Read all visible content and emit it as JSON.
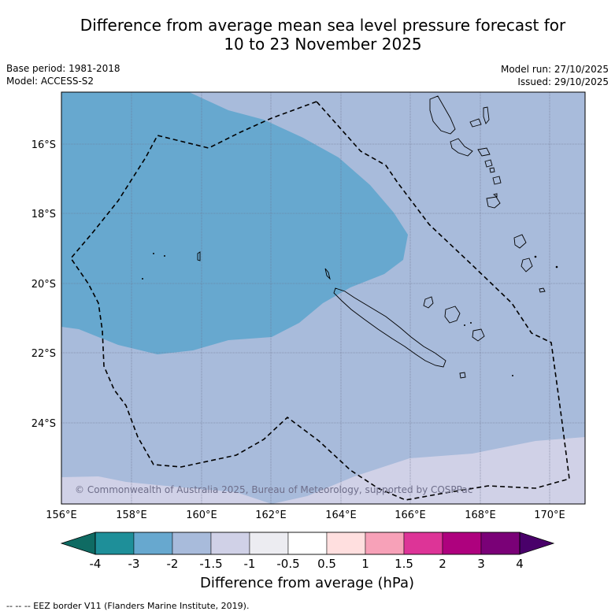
{
  "title": {
    "line1": "Difference from average mean sea level pressure forecast for",
    "line2": "10 to 23 November 2025"
  },
  "meta": {
    "base_period": "Base period: 1981-2018",
    "model": "Model: ACCESS-S2",
    "model_run": "Model run: 27/10/2025",
    "issued": "Issued: 29/10/2025"
  },
  "axes": {
    "lon_labels": [
      "156°E",
      "158°E",
      "160°E",
      "162°E",
      "164°E",
      "166°E",
      "168°E",
      "170°E"
    ],
    "lat_labels": [
      "16°S",
      "18°S",
      "20°S",
      "22°S",
      "24°S"
    ]
  },
  "copyright": "© Commonwealth of Australia 2025, Bureau of Meteorology, supported by COSPPac",
  "colorbar": {
    "tick_labels": [
      "-4",
      "-3",
      "-2",
      "-1.5",
      "-1",
      "-0.5",
      "0.5",
      "1",
      "1.5",
      "2",
      "3",
      "4"
    ],
    "colors": [
      "#1e8f99",
      "#67a8cf",
      "#a8bbdb",
      "#d0d1e7",
      "#ececf1",
      "#ffffff",
      "#ffdfdf",
      "#f7a1b8",
      "#dd3497",
      "#ae017e",
      "#7a0177"
    ],
    "under_color": "#0f6b63",
    "over_color": "#49006a",
    "title": "Difference from average (hPa)"
  },
  "legend_note": "--  --  -- EEZ border V11 (Flanders Marine Institute, 2019).",
  "map_colors": {
    "cat_m3_m2": "#67a8cf",
    "cat_m2_m15": "#a8bbdb",
    "cat_m15_m1": "#d0d1e7"
  }
}
